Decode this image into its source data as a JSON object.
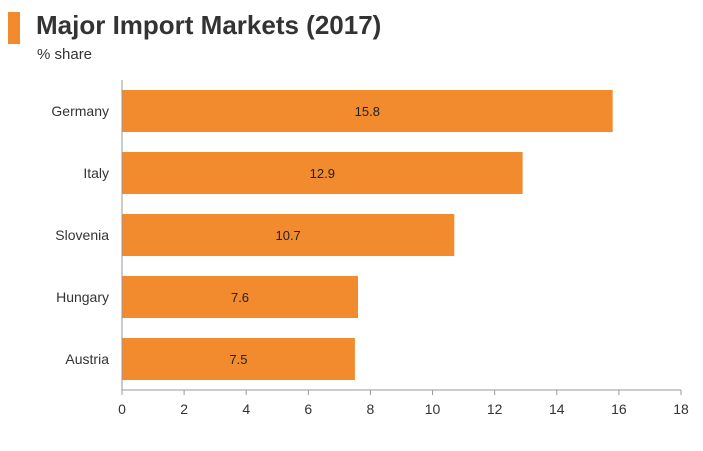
{
  "header": {
    "title": "Major Import Markets (2017)",
    "subtitle": "% share"
  },
  "colors": {
    "accent": "#f28a2e",
    "bar": "#f28a2e",
    "text": "#333333",
    "axis": "#999999"
  },
  "chart_data": {
    "type": "bar",
    "orientation": "horizontal",
    "title": "Major Import Markets (2017)",
    "subtitle": "% share",
    "categories": [
      "Germany",
      "Italy",
      "Slovenia",
      "Hungary",
      "Austria"
    ],
    "values": [
      15.8,
      12.9,
      10.7,
      7.6,
      7.5
    ],
    "xlabel": "",
    "ylabel": "",
    "xlim": [
      0,
      18
    ],
    "xticks": [
      0,
      2,
      4,
      6,
      8,
      10,
      12,
      14,
      16,
      18
    ],
    "grid": false,
    "legend": "none"
  }
}
